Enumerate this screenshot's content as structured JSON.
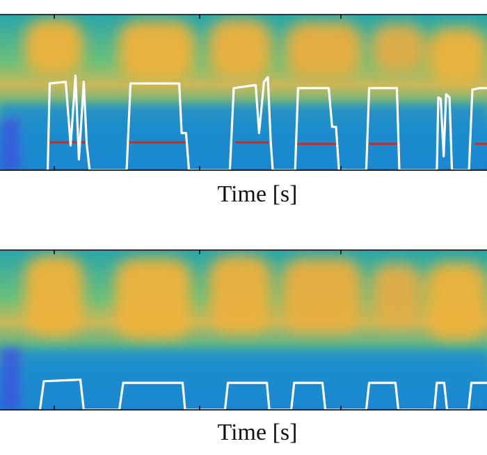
{
  "panels": [
    {
      "xlabel": "Time [s]",
      "chart_data": {
        "type": "line",
        "title": "",
        "xlabel": "Time [s]",
        "ylabel": "",
        "background": "spectrogram",
        "series": [
          {
            "color": "#ffffff",
            "points": [
              [
                0.098,
                0
              ],
              [
                0.102,
                0.56
              ],
              [
                0.135,
                0.57
              ],
              [
                0.145,
                0.16
              ],
              [
                0.155,
                0.61
              ],
              [
                0.162,
                0.07
              ],
              [
                0.172,
                0.57
              ],
              [
                0.178,
                0.17
              ],
              [
                0.184,
                0
              ],
              [
                0.26,
                0
              ],
              [
                0.268,
                0.56
              ],
              [
                0.368,
                0.56
              ],
              [
                0.373,
                0.24
              ],
              [
                0.382,
                0.24
              ],
              [
                0.388,
                0
              ],
              [
                0.472,
                0
              ],
              [
                0.48,
                0.53
              ],
              [
                0.525,
                0.55
              ],
              [
                0.532,
                0.24
              ],
              [
                0.542,
                0.57
              ],
              [
                0.55,
                0.6
              ],
              [
                0.556,
                0.18
              ],
              [
                0.56,
                0
              ],
              [
                0.606,
                0
              ],
              [
                0.612,
                0.53
              ],
              [
                0.675,
                0.53
              ],
              [
                0.682,
                0.28
              ],
              [
                0.69,
                0.28
              ],
              [
                0.696,
                0
              ],
              [
                0.752,
                0
              ],
              [
                0.758,
                0.53
              ],
              [
                0.815,
                0.53
              ],
              [
                0.82,
                0
              ],
              [
                0.897,
                0
              ],
              [
                0.9,
                0.47
              ],
              [
                0.905,
                0.46
              ],
              [
                0.911,
                0.09
              ],
              [
                0.916,
                0.49
              ],
              [
                0.923,
                0.47
              ],
              [
                0.928,
                0
              ],
              [
                0.963,
                0
              ],
              [
                0.97,
                0.52
              ],
              [
                0.985,
                0.53
              ],
              [
                1.0,
                0.53
              ]
            ]
          },
          {
            "color": "#cc2b1d",
            "segments": [
              [
                0.1,
                0.177,
                0.18
              ],
              [
                0.265,
                0.383,
                0.18
              ],
              [
                0.483,
                0.552,
                0.18
              ],
              [
                0.61,
                0.692,
                0.17
              ],
              [
                0.758,
                0.818,
                0.17
              ],
              [
                0.975,
                1.0,
                0.17
              ]
            ]
          }
        ]
      }
    },
    {
      "xlabel": "Time [s]",
      "chart_data": {
        "type": "line",
        "title": "",
        "xlabel": "Time [s]",
        "ylabel": "",
        "background": "spectrogram",
        "series": [
          {
            "color": "#ffffff",
            "points": [
              [
                0.082,
                0
              ],
              [
                0.09,
                0.18
              ],
              [
                0.165,
                0.19
              ],
              [
                0.172,
                0
              ],
              [
                0.245,
                0
              ],
              [
                0.253,
                0.17
              ],
              [
                0.375,
                0.17
              ],
              [
                0.38,
                0
              ],
              [
                0.462,
                0
              ],
              [
                0.468,
                0.17
              ],
              [
                0.548,
                0.17
              ],
              [
                0.553,
                0
              ],
              [
                0.598,
                0
              ],
              [
                0.604,
                0.17
              ],
              [
                0.662,
                0.17
              ],
              [
                0.668,
                0
              ],
              [
                0.752,
                0
              ],
              [
                0.758,
                0.17
              ],
              [
                0.812,
                0.17
              ],
              [
                0.818,
                0
              ],
              [
                0.892,
                0
              ],
              [
                0.897,
                0.17
              ],
              [
                0.912,
                0.17
              ],
              [
                0.918,
                0
              ],
              [
                0.962,
                0
              ],
              [
                0.968,
                0.17
              ],
              [
                1.0,
                0.17
              ]
            ]
          }
        ]
      }
    }
  ]
}
